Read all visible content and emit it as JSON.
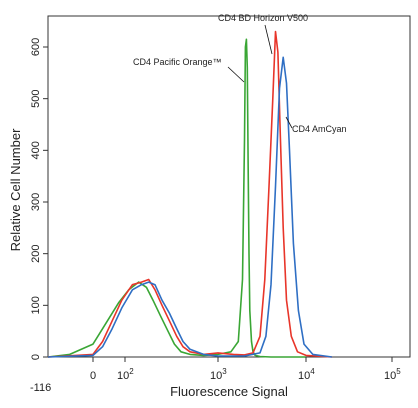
{
  "chart_data": {
    "type": "line",
    "title": "",
    "xlabel": "Fluorescence Signal",
    "ylabel": "Relative Cell Number",
    "x_scale": "biexponential",
    "x_tick_labels": [
      "-116",
      "0",
      "10^2",
      "10^3",
      "10^4",
      "10^5"
    ],
    "x_ticks": [
      {
        "value": -116,
        "label": "-116"
      },
      {
        "value": 0,
        "label": "0"
      },
      {
        "value": 100,
        "label": "10",
        "exp": "2"
      },
      {
        "value": 1000,
        "label": "10",
        "exp": "3"
      },
      {
        "value": 10000,
        "label": "10",
        "exp": "4"
      },
      {
        "value": 100000,
        "label": "10",
        "exp": "5"
      }
    ],
    "y_ticks": [
      0,
      100,
      200,
      300,
      400,
      500,
      600
    ],
    "ylim": [
      0,
      660
    ],
    "grid": false,
    "legend": "none",
    "series": [
      {
        "name": "CD4 Pacific Orange™",
        "color": "#3aa635",
        "x": [
          -150,
          -60,
          0,
          20,
          50,
          80,
          110,
          140,
          170,
          200,
          240,
          290,
          340,
          400,
          500,
          700,
          1000,
          1400,
          1700,
          1900,
          2000,
          2050,
          2100,
          2150,
          2200,
          2250,
          2300,
          2400,
          2500,
          2650,
          3000,
          4000,
          6000,
          10000
        ],
        "y": [
          0,
          5,
          25,
          45,
          75,
          105,
          130,
          145,
          135,
          110,
          80,
          50,
          25,
          10,
          5,
          3,
          5,
          10,
          30,
          150,
          420,
          600,
          615,
          560,
          380,
          200,
          90,
          30,
          10,
          3,
          1,
          0,
          0,
          0
        ]
      },
      {
        "name": "CD4 BD Horizon V500",
        "color": "#e8352a",
        "x": [
          -150,
          0,
          30,
          60,
          90,
          120,
          150,
          180,
          210,
          250,
          300,
          360,
          420,
          500,
          700,
          1000,
          1500,
          2000,
          2500,
          3000,
          3400,
          3800,
          4200,
          4500,
          4800,
          5100,
          5500,
          6000,
          6800,
          8000,
          10000,
          20000
        ],
        "y": [
          0,
          5,
          30,
          70,
          110,
          140,
          145,
          150,
          130,
          100,
          70,
          40,
          20,
          10,
          5,
          8,
          5,
          4,
          8,
          40,
          150,
          330,
          500,
          630,
          590,
          430,
          250,
          110,
          40,
          10,
          3,
          0
        ]
      },
      {
        "name": "CD4 AmCyan",
        "color": "#2f6fc4",
        "x": [
          -150,
          0,
          30,
          60,
          90,
          120,
          150,
          180,
          210,
          250,
          300,
          360,
          420,
          500,
          700,
          1000,
          2000,
          3000,
          3500,
          4000,
          4500,
          5000,
          5500,
          6000,
          6500,
          7200,
          8200,
          9500,
          12000,
          20000
        ],
        "y": [
          0,
          3,
          20,
          55,
          95,
          130,
          140,
          145,
          140,
          110,
          85,
          55,
          30,
          15,
          5,
          2,
          2,
          8,
          40,
          140,
          330,
          520,
          580,
          530,
          400,
          220,
          90,
          25,
          5,
          0
        ]
      }
    ],
    "annotations": [
      {
        "text": "CD4 Pacific Orange™",
        "series": 0
      },
      {
        "text": "CD4 BD Horizon V500",
        "series": 1
      },
      {
        "text": "CD4 AmCyan",
        "series": 2
      }
    ]
  }
}
